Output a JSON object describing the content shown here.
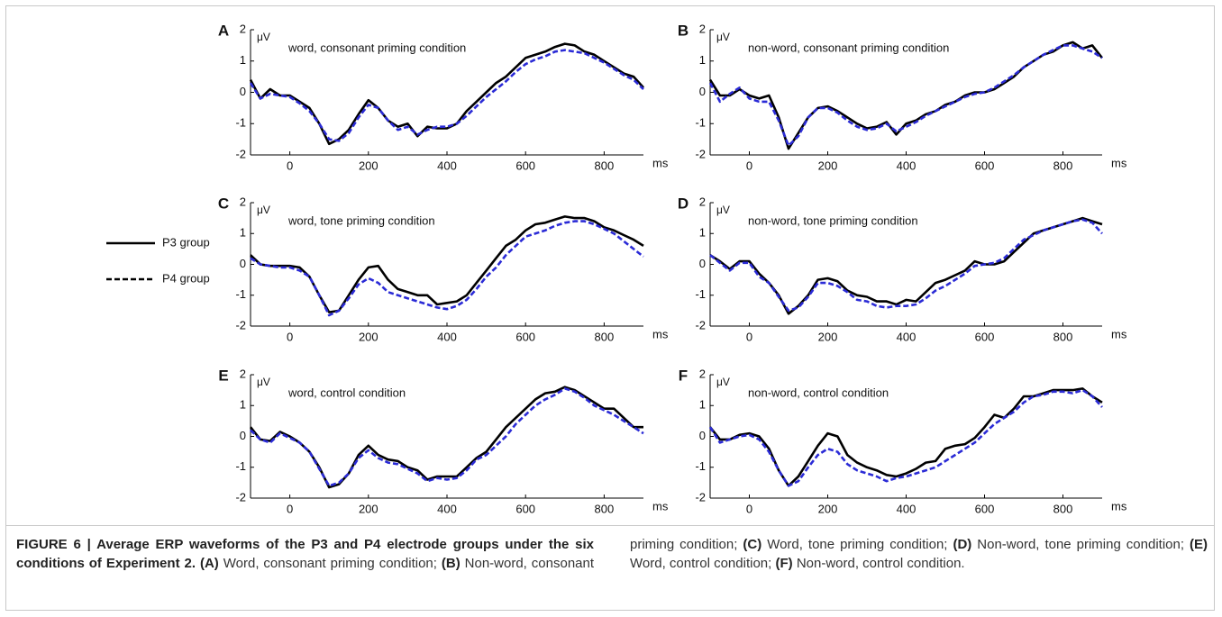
{
  "chart_data": [
    {
      "type": "line",
      "label": "A",
      "title": "word, consonant priming condition",
      "x_unit": "ms",
      "y_unit": "μV",
      "x": [
        -100,
        -75,
        -50,
        -25,
        0,
        25,
        50,
        75,
        100,
        125,
        150,
        175,
        200,
        225,
        250,
        275,
        300,
        325,
        350,
        375,
        400,
        425,
        450,
        475,
        500,
        525,
        550,
        575,
        600,
        625,
        650,
        675,
        700,
        725,
        750,
        775,
        800,
        825,
        850,
        875,
        900
      ],
      "xlim": [
        -100,
        900
      ],
      "xticks": [
        0,
        200,
        400,
        600,
        800
      ],
      "ylim": [
        -2,
        2
      ],
      "yticks": [
        -2,
        -1,
        0,
        1,
        2
      ],
      "series": [
        {
          "color": "#000000",
          "dashed": false,
          "values": [
            0.4,
            -0.2,
            0.1,
            -0.1,
            -0.1,
            -0.3,
            -0.5,
            -1.0,
            -1.65,
            -1.5,
            -1.2,
            -0.7,
            -0.25,
            -0.5,
            -0.9,
            -1.1,
            -1.0,
            -1.4,
            -1.1,
            -1.15,
            -1.15,
            -1.0,
            -0.6,
            -0.3,
            0.0,
            0.3,
            0.5,
            0.8,
            1.1,
            1.2,
            1.3,
            1.45,
            1.55,
            1.5,
            1.3,
            1.2,
            1.0,
            0.8,
            0.6,
            0.5,
            0.15
          ]
        },
        {
          "color": "#2b2bd6",
          "dashed": true,
          "values": [
            0.3,
            -0.2,
            -0.05,
            -0.1,
            -0.15,
            -0.35,
            -0.6,
            -1.0,
            -1.5,
            -1.55,
            -1.3,
            -0.8,
            -0.4,
            -0.5,
            -0.9,
            -1.2,
            -1.1,
            -1.35,
            -1.2,
            -1.1,
            -1.1,
            -1.0,
            -0.75,
            -0.45,
            -0.15,
            0.1,
            0.35,
            0.65,
            0.9,
            1.05,
            1.15,
            1.3,
            1.35,
            1.3,
            1.25,
            1.1,
            0.95,
            0.75,
            0.55,
            0.4,
            0.1
          ]
        }
      ]
    },
    {
      "type": "line",
      "label": "B",
      "title": "non-word, consonant priming condition",
      "x_unit": "ms",
      "y_unit": "μV",
      "x": [
        -100,
        -75,
        -50,
        -25,
        0,
        25,
        50,
        75,
        100,
        125,
        150,
        175,
        200,
        225,
        250,
        275,
        300,
        325,
        350,
        375,
        400,
        425,
        450,
        475,
        500,
        525,
        550,
        575,
        600,
        625,
        650,
        675,
        700,
        725,
        750,
        775,
        800,
        825,
        850,
        875,
        900
      ],
      "xlim": [
        -100,
        900
      ],
      "xticks": [
        0,
        200,
        400,
        600,
        800
      ],
      "ylim": [
        -2,
        2
      ],
      "yticks": [
        -2,
        -1,
        0,
        1,
        2
      ],
      "series": [
        {
          "color": "#000000",
          "dashed": false,
          "values": [
            0.4,
            -0.1,
            -0.1,
            0.1,
            -0.1,
            -0.2,
            -0.1,
            -0.8,
            -1.8,
            -1.3,
            -0.8,
            -0.5,
            -0.45,
            -0.6,
            -0.8,
            -1.0,
            -1.15,
            -1.1,
            -0.95,
            -1.35,
            -1.0,
            -0.9,
            -0.7,
            -0.6,
            -0.4,
            -0.3,
            -0.1,
            0.0,
            0.0,
            0.1,
            0.3,
            0.5,
            0.8,
            1.0,
            1.2,
            1.3,
            1.5,
            1.6,
            1.4,
            1.5,
            1.1
          ]
        },
        {
          "color": "#2b2bd6",
          "dashed": true,
          "values": [
            0.3,
            -0.3,
            -0.05,
            0.15,
            -0.2,
            -0.3,
            -0.3,
            -0.9,
            -1.7,
            -1.4,
            -0.8,
            -0.5,
            -0.5,
            -0.65,
            -0.9,
            -1.1,
            -1.2,
            -1.15,
            -1.0,
            -1.25,
            -1.1,
            -0.95,
            -0.75,
            -0.6,
            -0.45,
            -0.3,
            -0.15,
            -0.05,
            0.0,
            0.15,
            0.35,
            0.55,
            0.8,
            1.0,
            1.2,
            1.35,
            1.5,
            1.5,
            1.4,
            1.3,
            1.1
          ]
        }
      ]
    },
    {
      "type": "line",
      "label": "C",
      "title": "word, tone priming condition",
      "x_unit": "ms",
      "y_unit": "μV",
      "x": [
        -100,
        -75,
        -50,
        -25,
        0,
        25,
        50,
        75,
        100,
        125,
        150,
        175,
        200,
        225,
        250,
        275,
        300,
        325,
        350,
        375,
        400,
        425,
        450,
        475,
        500,
        525,
        550,
        575,
        600,
        625,
        650,
        675,
        700,
        725,
        750,
        775,
        800,
        825,
        850,
        875,
        900
      ],
      "xlim": [
        -100,
        900
      ],
      "xticks": [
        0,
        200,
        400,
        600,
        800
      ],
      "ylim": [
        -2,
        2
      ],
      "yticks": [
        -2,
        -1,
        0,
        1,
        2
      ],
      "series": [
        {
          "color": "#000000",
          "dashed": false,
          "values": [
            0.3,
            0.0,
            -0.05,
            -0.05,
            -0.05,
            -0.1,
            -0.4,
            -1.0,
            -1.55,
            -1.5,
            -1.0,
            -0.5,
            -0.1,
            -0.05,
            -0.5,
            -0.8,
            -0.9,
            -1.0,
            -1.0,
            -1.3,
            -1.25,
            -1.2,
            -1.0,
            -0.6,
            -0.2,
            0.2,
            0.6,
            0.8,
            1.1,
            1.3,
            1.35,
            1.45,
            1.55,
            1.5,
            1.5,
            1.4,
            1.2,
            1.1,
            0.95,
            0.8,
            0.6
          ]
        },
        {
          "color": "#2b2bd6",
          "dashed": true,
          "values": [
            0.2,
            0.0,
            -0.05,
            -0.1,
            -0.1,
            -0.2,
            -0.4,
            -1.0,
            -1.65,
            -1.5,
            -1.1,
            -0.65,
            -0.45,
            -0.6,
            -0.9,
            -1.0,
            -1.1,
            -1.2,
            -1.3,
            -1.4,
            -1.45,
            -1.35,
            -1.15,
            -0.8,
            -0.4,
            -0.1,
            0.3,
            0.6,
            0.9,
            1.0,
            1.1,
            1.25,
            1.35,
            1.4,
            1.4,
            1.3,
            1.15,
            1.0,
            0.75,
            0.5,
            0.25
          ]
        }
      ]
    },
    {
      "type": "line",
      "label": "D",
      "title": "non-word, tone priming condition",
      "x_unit": "ms",
      "y_unit": "μV",
      "x": [
        -100,
        -75,
        -50,
        -25,
        0,
        25,
        50,
        75,
        100,
        125,
        150,
        175,
        200,
        225,
        250,
        275,
        300,
        325,
        350,
        375,
        400,
        425,
        450,
        475,
        500,
        525,
        550,
        575,
        600,
        625,
        650,
        675,
        700,
        725,
        750,
        775,
        800,
        825,
        850,
        875,
        900
      ],
      "xlim": [
        -100,
        900
      ],
      "xticks": [
        0,
        200,
        400,
        600,
        800
      ],
      "ylim": [
        -2,
        2
      ],
      "yticks": [
        -2,
        -1,
        0,
        1,
        2
      ],
      "series": [
        {
          "color": "#000000",
          "dashed": false,
          "values": [
            0.3,
            0.1,
            -0.15,
            0.1,
            0.1,
            -0.3,
            -0.6,
            -1.0,
            -1.6,
            -1.35,
            -1.0,
            -0.5,
            -0.45,
            -0.55,
            -0.85,
            -1.0,
            -1.05,
            -1.2,
            -1.2,
            -1.3,
            -1.15,
            -1.2,
            -0.9,
            -0.6,
            -0.5,
            -0.35,
            -0.2,
            0.1,
            0.0,
            0.0,
            0.1,
            0.4,
            0.7,
            1.0,
            1.1,
            1.2,
            1.3,
            1.4,
            1.5,
            1.4,
            1.3
          ]
        },
        {
          "color": "#2b2bd6",
          "dashed": true,
          "values": [
            0.3,
            0.05,
            -0.2,
            0.05,
            0.05,
            -0.4,
            -0.6,
            -1.05,
            -1.5,
            -1.4,
            -1.05,
            -0.6,
            -0.6,
            -0.7,
            -0.9,
            -1.15,
            -1.2,
            -1.35,
            -1.4,
            -1.35,
            -1.35,
            -1.3,
            -1.1,
            -0.85,
            -0.7,
            -0.5,
            -0.3,
            -0.05,
            0.0,
            0.05,
            0.2,
            0.5,
            0.8,
            0.95,
            1.1,
            1.2,
            1.3,
            1.4,
            1.45,
            1.35,
            1.0
          ]
        }
      ]
    },
    {
      "type": "line",
      "label": "E",
      "title": "word, control condition",
      "x_unit": "ms",
      "y_unit": "μV",
      "x": [
        -100,
        -75,
        -50,
        -25,
        0,
        25,
        50,
        75,
        100,
        125,
        150,
        175,
        200,
        225,
        250,
        275,
        300,
        325,
        350,
        375,
        400,
        425,
        450,
        475,
        500,
        525,
        550,
        575,
        600,
        625,
        650,
        675,
        700,
        725,
        750,
        775,
        800,
        825,
        850,
        875,
        900
      ],
      "xlim": [
        -100,
        900
      ],
      "xticks": [
        0,
        200,
        400,
        600,
        800
      ],
      "ylim": [
        -2,
        2
      ],
      "yticks": [
        -2,
        -1,
        0,
        1,
        2
      ],
      "series": [
        {
          "color": "#000000",
          "dashed": false,
          "values": [
            0.3,
            -0.1,
            -0.15,
            0.15,
            0.0,
            -0.2,
            -0.5,
            -1.0,
            -1.65,
            -1.55,
            -1.2,
            -0.6,
            -0.3,
            -0.6,
            -0.75,
            -0.8,
            -1.0,
            -1.1,
            -1.4,
            -1.3,
            -1.3,
            -1.3,
            -1.0,
            -0.7,
            -0.5,
            -0.1,
            0.3,
            0.6,
            0.9,
            1.2,
            1.4,
            1.45,
            1.6,
            1.5,
            1.3,
            1.1,
            0.9,
            0.9,
            0.6,
            0.3,
            0.3
          ]
        },
        {
          "color": "#2b2bd6",
          "dashed": true,
          "values": [
            0.2,
            -0.1,
            -0.2,
            0.1,
            -0.05,
            -0.2,
            -0.5,
            -1.05,
            -1.6,
            -1.5,
            -1.2,
            -0.7,
            -0.45,
            -0.7,
            -0.85,
            -0.9,
            -1.05,
            -1.2,
            -1.45,
            -1.35,
            -1.4,
            -1.35,
            -1.1,
            -0.75,
            -0.6,
            -0.3,
            0.0,
            0.4,
            0.7,
            1.0,
            1.2,
            1.35,
            1.55,
            1.45,
            1.25,
            1.0,
            0.85,
            0.7,
            0.5,
            0.3,
            0.1
          ]
        }
      ]
    },
    {
      "type": "line",
      "label": "F",
      "title": "non-word, control condition",
      "x_unit": "ms",
      "y_unit": "μV",
      "x": [
        -100,
        -75,
        -50,
        -25,
        0,
        25,
        50,
        75,
        100,
        125,
        150,
        175,
        200,
        225,
        250,
        275,
        300,
        325,
        350,
        375,
        400,
        425,
        450,
        475,
        500,
        525,
        550,
        575,
        600,
        625,
        650,
        675,
        700,
        725,
        750,
        775,
        800,
        825,
        850,
        875,
        900
      ],
      "xlim": [
        -100,
        900
      ],
      "xticks": [
        0,
        200,
        400,
        600,
        800
      ],
      "ylim": [
        -2,
        2
      ],
      "yticks": [
        -2,
        -1,
        0,
        1,
        2
      ],
      "series": [
        {
          "color": "#000000",
          "dashed": false,
          "values": [
            0.3,
            -0.1,
            -0.1,
            0.05,
            0.1,
            0.0,
            -0.4,
            -1.1,
            -1.6,
            -1.3,
            -0.8,
            -0.3,
            0.1,
            0.0,
            -0.6,
            -0.85,
            -1.0,
            -1.1,
            -1.25,
            -1.3,
            -1.2,
            -1.05,
            -0.85,
            -0.8,
            -0.4,
            -0.3,
            -0.25,
            -0.05,
            0.3,
            0.7,
            0.6,
            0.9,
            1.3,
            1.3,
            1.4,
            1.5,
            1.5,
            1.5,
            1.55,
            1.3,
            1.1
          ]
        },
        {
          "color": "#2b2bd6",
          "dashed": true,
          "values": [
            0.3,
            -0.2,
            -0.1,
            0.0,
            0.05,
            -0.1,
            -0.5,
            -1.1,
            -1.6,
            -1.45,
            -1.0,
            -0.6,
            -0.4,
            -0.5,
            -0.9,
            -1.1,
            -1.2,
            -1.3,
            -1.45,
            -1.35,
            -1.3,
            -1.2,
            -1.1,
            -1.0,
            -0.8,
            -0.6,
            -0.4,
            -0.2,
            0.1,
            0.4,
            0.6,
            0.8,
            1.1,
            1.3,
            1.35,
            1.45,
            1.45,
            1.4,
            1.5,
            1.3,
            0.95
          ]
        }
      ]
    }
  ],
  "legend": [
    {
      "name": "P3 group",
      "color": "#000000",
      "dashed": false
    },
    {
      "name": "P4 group",
      "color": "#000000",
      "dashed": true
    }
  ],
  "caption": {
    "title": "FIGURE 6 | Average ERP waveforms of the P3 and P4 electrode groups under the six conditions of Experiment 2.",
    "items": [
      {
        "label": "(A)",
        "text": "Word, consonant priming condition;"
      },
      {
        "label": "(B)",
        "text": "Non-word, consonant priming condition;"
      },
      {
        "label": "(C)",
        "text": "Word, tone priming condition;"
      },
      {
        "label": "(D)",
        "text": "Non-word, tone priming condition;"
      },
      {
        "label": "(E)",
        "text": "Word, control condition;"
      },
      {
        "label": "(F)",
        "text": "Non-word, control condition."
      }
    ]
  }
}
